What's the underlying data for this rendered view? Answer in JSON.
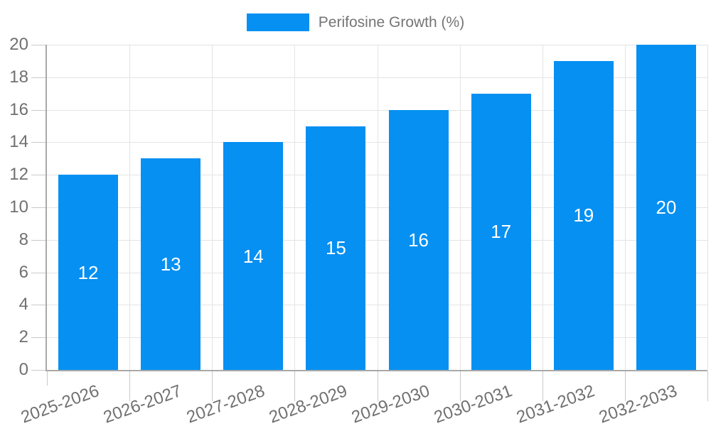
{
  "chart_data": {
    "type": "bar",
    "title": "",
    "legend_label": "Perifosine Growth (%)",
    "legend_position": "top-center",
    "categories": [
      "2025-2026",
      "2026-2027",
      "2027-2028",
      "2028-2029",
      "2029-2030",
      "2030-2031",
      "2031-2032",
      "2032-2033"
    ],
    "series": [
      {
        "name": "Perifosine Growth (%)",
        "values": [
          12,
          13,
          14,
          15,
          16,
          17,
          19,
          20
        ]
      }
    ],
    "values": [
      12,
      13,
      14,
      15,
      16,
      17,
      19,
      20
    ],
    "value_labels": [
      "12",
      "13",
      "14",
      "15",
      "16",
      "17",
      "19",
      "20"
    ],
    "xlabel": "",
    "ylabel": "",
    "ylim": [
      0,
      20
    ],
    "yticks": [
      0,
      2,
      4,
      6,
      8,
      10,
      12,
      14,
      16,
      18,
      20
    ],
    "grid": true,
    "colors": {
      "bar": "#0590F2",
      "value_label": "#FFFFFF",
      "grid": "#E4E4E4",
      "axis": "#A8A8A8",
      "tick": "#C9C9C9",
      "tick_label": "#707070",
      "legend_text": "#757575",
      "background": "#FFFFFF"
    }
  }
}
